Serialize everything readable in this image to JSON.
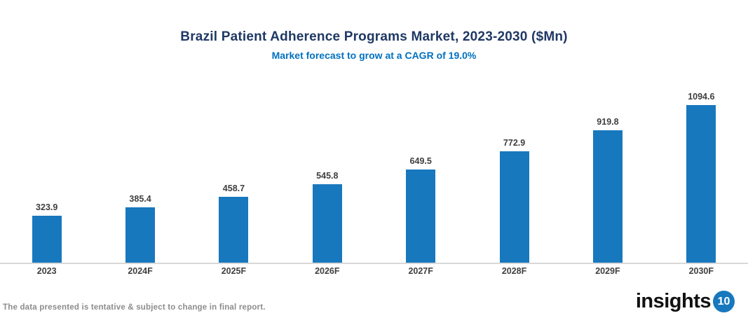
{
  "header": {
    "title": "Brazil Patient Adherence Programs Market, 2023-2030 ($Mn)",
    "subtitle": "Market forecast to grow at a CAGR of 19.0%",
    "title_color": "#1f3864",
    "subtitle_color": "#0070c0"
  },
  "chart_data": {
    "type": "bar",
    "title": "Brazil Patient Adherence Programs Market, 2023-2030 ($Mn)",
    "subtitle": "Market forecast to grow at a CAGR of 19.0%",
    "categories": [
      "2023",
      "2024F",
      "2025F",
      "2026F",
      "2027F",
      "2028F",
      "2029F",
      "2030F"
    ],
    "values": [
      323.9,
      385.4,
      458.7,
      545.8,
      649.5,
      772.9,
      919.8,
      1094.6
    ],
    "xlabel": "",
    "ylabel": "",
    "ylim": [
      0,
      1150
    ],
    "bar_color": "#1878be",
    "axis_line_color": "#d9d9d9",
    "grid": false,
    "legend": false,
    "data_labels": true
  },
  "footer": {
    "disclaimer": "The data presented is tentative & subject to change in final report.",
    "logo_text": "insights",
    "logo_badge": "10",
    "logo_badge_color": "#1878be"
  }
}
